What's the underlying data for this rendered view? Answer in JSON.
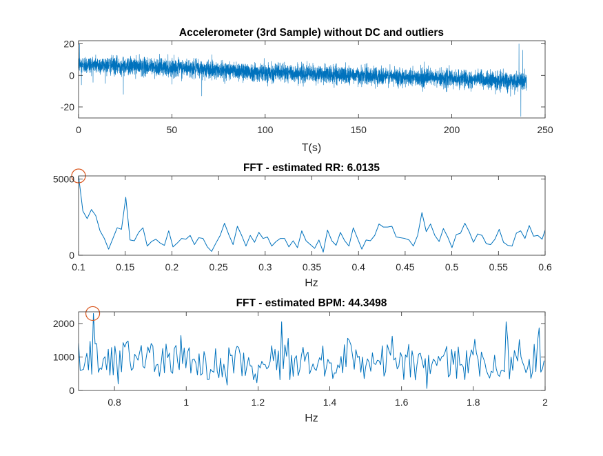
{
  "chart_data": [
    {
      "type": "line",
      "title": "Accelerometer (3rd Sample) without DC and outliers",
      "xlabel": "T(s)",
      "ylabel": "",
      "xlim": [
        0,
        250
      ],
      "ylim": [
        -27,
        22
      ],
      "xticks": [
        0,
        50,
        100,
        150,
        200,
        250
      ],
      "xtick_labels": [
        "0",
        "50",
        "100",
        "150",
        "200",
        "250"
      ],
      "yticks": [
        -20,
        0,
        20
      ],
      "ytick_labels": [
        "-20",
        "0",
        "20"
      ],
      "grid": false,
      "line_color": "#0072BD",
      "signal": {
        "duration_s": 240,
        "trend": [
          [
            0,
            7
          ],
          [
            50,
            5
          ],
          [
            100,
            2
          ],
          [
            150,
            0
          ],
          [
            200,
            -2
          ],
          [
            235,
            -4
          ],
          [
            240,
            -4
          ]
        ],
        "noise_amplitude": 5,
        "spikes": [
          [
            0.5,
            20
          ],
          [
            1.5,
            -6
          ],
          [
            24,
            -12
          ],
          [
            66,
            -13
          ],
          [
            236,
            20
          ],
          [
            237,
            -26
          ],
          [
            238,
            16
          ]
        ]
      }
    },
    {
      "type": "line",
      "title": "FFT - estimated RR: 6.0135",
      "xlabel": "Hz",
      "ylabel": "",
      "xlim": [
        0.1,
        0.6
      ],
      "ylim": [
        0,
        5200
      ],
      "xticks": [
        0.1,
        0.15,
        0.2,
        0.25,
        0.3,
        0.35,
        0.4,
        0.45,
        0.5,
        0.55,
        0.6
      ],
      "xtick_labels": [
        "0.1",
        "0.15",
        "0.2",
        "0.25",
        "0.3",
        "0.35",
        "0.4",
        "0.45",
        "0.5",
        "0.55",
        "0.6"
      ],
      "yticks": [
        0,
        5000
      ],
      "ytick_labels": [
        "0",
        "5000"
      ],
      "grid": false,
      "line_color": "#0072BD",
      "marker_color": "#D95319",
      "peak": {
        "x": 0.1,
        "y": 5200
      },
      "x": [
        0.1,
        0.1046,
        0.1092,
        0.1138,
        0.1184,
        0.123,
        0.1276,
        0.1322,
        0.1368,
        0.1414,
        0.146,
        0.1506,
        0.1552,
        0.1598,
        0.1644,
        0.169,
        0.1736,
        0.1782,
        0.1828,
        0.1874,
        0.192,
        0.1966,
        0.2012,
        0.2058,
        0.2104,
        0.215,
        0.2196,
        0.2242,
        0.2288,
        0.2334,
        0.238,
        0.2426,
        0.2472,
        0.2518,
        0.2564,
        0.261,
        0.2656,
        0.2702,
        0.2748,
        0.2794,
        0.284,
        0.2886,
        0.2932,
        0.2978,
        0.3024,
        0.307,
        0.3116,
        0.3162,
        0.3208,
        0.3254,
        0.33,
        0.3346,
        0.3392,
        0.3438,
        0.3484,
        0.353,
        0.3576,
        0.3622,
        0.3668,
        0.3714,
        0.376,
        0.3806,
        0.3852,
        0.3898,
        0.3944,
        0.399,
        0.4036,
        0.4082,
        0.4128,
        0.4174,
        0.422,
        0.4266,
        0.4312,
        0.4358,
        0.4404,
        0.445,
        0.4496,
        0.4542,
        0.4588,
        0.4634,
        0.468,
        0.4726,
        0.4772,
        0.4818,
        0.4864,
        0.491,
        0.4956,
        0.5002,
        0.5048,
        0.5094,
        0.514,
        0.5186,
        0.5232,
        0.5278,
        0.5324,
        0.537,
        0.5416,
        0.5462,
        0.5508,
        0.5554,
        0.56,
        0.5646,
        0.5692,
        0.5738,
        0.5784,
        0.583,
        0.5876,
        0.5922,
        0.5968,
        0.6
      ],
      "y": [
        5200,
        2900,
        2400,
        3000,
        2600,
        1600,
        1100,
        400,
        1100,
        1800,
        1700,
        3800,
        1000,
        950,
        1500,
        1800,
        600,
        900,
        1050,
        800,
        650,
        1600,
        550,
        800,
        1100,
        1050,
        1300,
        700,
        1150,
        1100,
        550,
        250,
        800,
        1300,
        2100,
        1350,
        700,
        1900,
        1300,
        600,
        1300,
        850,
        1500,
        1100,
        1200,
        600,
        900,
        1100,
        1100,
        550,
        950,
        500,
        1600,
        950,
        700,
        450,
        1000,
        200,
        1650,
        950,
        650,
        1500,
        950,
        600,
        1800,
        1100,
        400,
        1000,
        950,
        1300,
        2050,
        1850,
        1850,
        1900,
        1200,
        1150,
        1100,
        1000,
        600,
        1300,
        2800,
        1550,
        2050,
        1300,
        900,
        1750,
        1200,
        500,
        1350,
        1450,
        2100,
        1550,
        850,
        1400,
        1300,
        750,
        700,
        1050,
        1700,
        850,
        650,
        600,
        1450,
        1600,
        1100,
        1950,
        1250,
        1300,
        1050,
        1650
      ]
    },
    {
      "type": "line",
      "title": "FFT - estimated BPM: 44.3498",
      "xlabel": "Hz",
      "ylabel": "",
      "xlim": [
        0.7,
        2.0
      ],
      "ylim": [
        0,
        2350
      ],
      "xticks": [
        0.8,
        1.0,
        1.2,
        1.4,
        1.6,
        1.8,
        2.0
      ],
      "xtick_labels": [
        "0.8",
        "1",
        "1.2",
        "1.4",
        "1.6",
        "1.8",
        "2"
      ],
      "yticks": [
        0,
        1000,
        2000
      ],
      "ytick_labels": [
        "0",
        "1000",
        "2000"
      ],
      "grid": false,
      "line_color": "#0072BD",
      "marker_color": "#D95319",
      "peak": {
        "x": 0.7395,
        "y": 2300
      },
      "spectrum": {
        "step": 0.0046,
        "base_mean": 850,
        "amplitude": 550,
        "spikes": [
          [
            0.7,
            1420
          ],
          [
            0.7395,
            2300
          ],
          [
            1.265,
            2050
          ],
          [
            1.89,
            2050
          ],
          [
            1.985,
            1870
          ],
          [
            1.575,
            1620
          ],
          [
            1.45,
            1560
          ],
          [
            0.75,
            1400
          ]
        ]
      }
    }
  ]
}
